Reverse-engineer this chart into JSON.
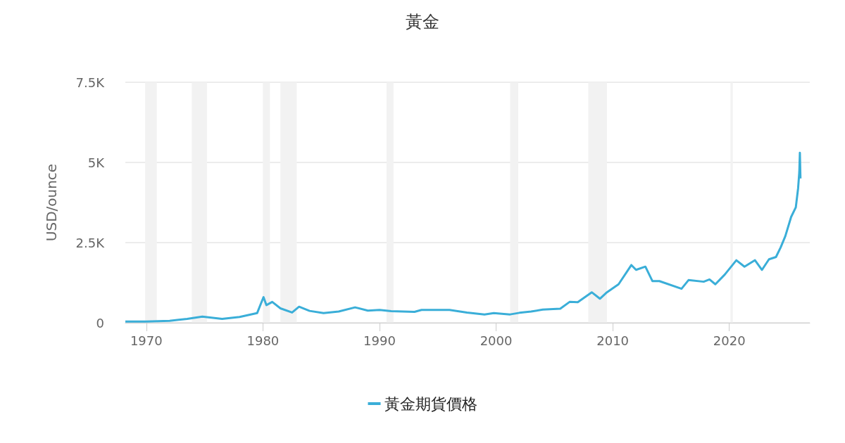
{
  "chart_data": {
    "type": "line",
    "title": "黃金",
    "ylabel": "USD/ounce",
    "x": [
      1968.2,
      1970,
      1972,
      1973.5,
      1974.8,
      1976.5,
      1978,
      1979.5,
      1980.05,
      1980.3,
      1980.8,
      1981.5,
      1982.5,
      1983.1,
      1984,
      1985.2,
      1986.5,
      1987.9,
      1989,
      1990,
      1991,
      1993,
      1993.6,
      1996,
      1997.5,
      1999,
      1999.8,
      2001.2,
      2002,
      2003,
      2004,
      2005.5,
      2006.3,
      2007,
      2008.2,
      2008.9,
      2009.5,
      2010.5,
      2011.6,
      2012,
      2012.8,
      2013.4,
      2014,
      2015.9,
      2016.5,
      2017.8,
      2018.3,
      2018.8,
      2019.6,
      2020.6,
      2021.3,
      2022.2,
      2022.8,
      2023.4,
      2024,
      2024.4,
      2024.8,
      2025.3,
      2025.7,
      2025.9,
      2026,
      2026.05,
      2026.1
    ],
    "series": [
      {
        "name": "黃金期貨價格",
        "color": "#3aaed8",
        "values": [
          40,
          40,
          60,
          120,
          190,
          120,
          180,
          300,
          800,
          550,
          650,
          450,
          320,
          500,
          370,
          300,
          350,
          480,
          380,
          400,
          360,
          340,
          400,
          400,
          320,
          260,
          300,
          260,
          310,
          350,
          410,
          440,
          650,
          640,
          950,
          750,
          950,
          1200,
          1800,
          1650,
          1750,
          1300,
          1300,
          1060,
          1330,
          1280,
          1350,
          1200,
          1500,
          1950,
          1750,
          1950,
          1650,
          1980,
          2050,
          2350,
          2700,
          3300,
          3600,
          4200,
          4700,
          5300,
          4500
        ]
      }
    ],
    "xlim": [
      1968.2,
      2026.9
    ],
    "xticks": [
      1970,
      1980,
      1990,
      2000,
      2010,
      2020
    ],
    "ylim": [
      0,
      7500
    ],
    "yticks": [
      0,
      {
        "value": 2500,
        "label": "2.5K"
      },
      {
        "value": 5000,
        "label": "5K"
      },
      {
        "value": 7500,
        "label": "7.5K"
      }
    ],
    "bands": [
      {
        "axis": "x",
        "from": 1969.9,
        "to": 1970.9,
        "color": "#f2f2f2"
      },
      {
        "axis": "x",
        "from": 1973.9,
        "to": 1975.2,
        "color": "#f2f2f2"
      },
      {
        "axis": "x",
        "from": 1980.0,
        "to": 1980.6,
        "color": "#f2f2f2"
      },
      {
        "axis": "x",
        "from": 1981.5,
        "to": 1982.9,
        "color": "#f2f2f2"
      },
      {
        "axis": "x",
        "from": 1990.6,
        "to": 1991.2,
        "color": "#f2f2f2"
      },
      {
        "axis": "x",
        "from": 2001.2,
        "to": 2001.9,
        "color": "#f2f2f2"
      },
      {
        "axis": "x",
        "from": 2007.9,
        "to": 2009.5,
        "color": "#f2f2f2"
      },
      {
        "axis": "x",
        "from": 2020.1,
        "to": 2020.3,
        "color": "#f2f2f2"
      }
    ],
    "grid": "y",
    "legend": "bottom",
    "marker": "none",
    "line_style": "solid"
  }
}
